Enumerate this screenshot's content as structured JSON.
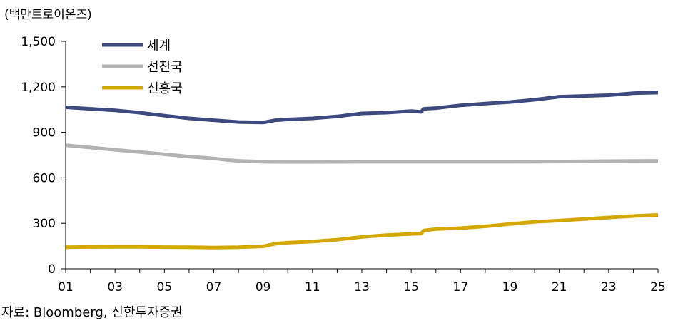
{
  "chart_data": {
    "type": "line",
    "unit_label": "(백만트로이온즈)",
    "source": "자료: Bloomberg, 신한투자증권",
    "ylim": [
      0,
      1500
    ],
    "yticks": [
      "0",
      "300",
      "600",
      "900",
      "1,200",
      "1,500"
    ],
    "ytick_values": [
      0,
      300,
      600,
      900,
      1200,
      1500
    ],
    "xlim": [
      2001,
      2025
    ],
    "xticks": [
      "01",
      "03",
      "05",
      "07",
      "09",
      "11",
      "13",
      "15",
      "17",
      "19",
      "21",
      "23",
      "25"
    ],
    "xtick_values": [
      2001,
      2003,
      2005,
      2007,
      2009,
      2011,
      2013,
      2015,
      2017,
      2019,
      2021,
      2023,
      2025
    ],
    "grid": false,
    "legend_position": "top-left",
    "series": [
      {
        "name": "세계",
        "color": "#3d4a80",
        "points": [
          [
            2001,
            1065
          ],
          [
            2002,
            1055
          ],
          [
            2003,
            1045
          ],
          [
            2004,
            1030
          ],
          [
            2005,
            1010
          ],
          [
            2006,
            992
          ],
          [
            2007,
            980
          ],
          [
            2008,
            968
          ],
          [
            2009,
            965
          ],
          [
            2009.5,
            980
          ],
          [
            2010,
            985
          ],
          [
            2011,
            992
          ],
          [
            2012,
            1005
          ],
          [
            2013,
            1025
          ],
          [
            2014,
            1030
          ],
          [
            2015,
            1040
          ],
          [
            2015.4,
            1035
          ],
          [
            2015.5,
            1055
          ],
          [
            2016,
            1060
          ],
          [
            2017,
            1078
          ],
          [
            2018,
            1090
          ],
          [
            2019,
            1100
          ],
          [
            2020,
            1115
          ],
          [
            2021,
            1135
          ],
          [
            2022,
            1140
          ],
          [
            2023,
            1145
          ],
          [
            2024,
            1158
          ],
          [
            2025,
            1162
          ]
        ]
      },
      {
        "name": "선진국",
        "color": "#b3b3b3",
        "points": [
          [
            2001,
            815
          ],
          [
            2002,
            800
          ],
          [
            2003,
            785
          ],
          [
            2004,
            770
          ],
          [
            2005,
            755
          ],
          [
            2006,
            740
          ],
          [
            2007,
            728
          ],
          [
            2007.5,
            718
          ],
          [
            2008,
            712
          ],
          [
            2009,
            706
          ],
          [
            2010,
            705
          ],
          [
            2011,
            705
          ],
          [
            2013,
            706
          ],
          [
            2015,
            706
          ],
          [
            2017,
            706
          ],
          [
            2019,
            706
          ],
          [
            2021,
            707
          ],
          [
            2023,
            710
          ],
          [
            2025,
            712
          ]
        ]
      },
      {
        "name": "신흥국",
        "color": "#d4a800",
        "points": [
          [
            2001,
            142
          ],
          [
            2002,
            144
          ],
          [
            2003,
            145
          ],
          [
            2004,
            145
          ],
          [
            2005,
            143
          ],
          [
            2006,
            142
          ],
          [
            2007,
            140
          ],
          [
            2008,
            142
          ],
          [
            2009,
            148
          ],
          [
            2009.5,
            165
          ],
          [
            2010,
            172
          ],
          [
            2011,
            180
          ],
          [
            2012,
            192
          ],
          [
            2013,
            210
          ],
          [
            2014,
            222
          ],
          [
            2015,
            230
          ],
          [
            2015.4,
            232
          ],
          [
            2015.5,
            252
          ],
          [
            2016,
            262
          ],
          [
            2017,
            268
          ],
          [
            2018,
            280
          ],
          [
            2019,
            295
          ],
          [
            2020,
            310
          ],
          [
            2021,
            318
          ],
          [
            2022,
            328
          ],
          [
            2023,
            338
          ],
          [
            2024,
            348
          ],
          [
            2025,
            355
          ]
        ]
      }
    ]
  }
}
